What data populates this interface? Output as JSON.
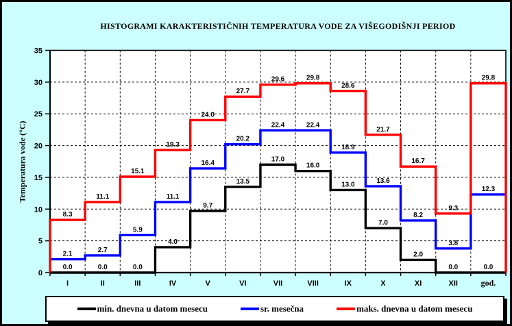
{
  "chart_data": {
    "type": "line",
    "step": true,
    "title": "HISTOGRAMI KARAKTERISTIČNIH TEMPERATURA VODE ZA VIŠEGODIŠNJI PERIOD",
    "ylabel": "Temperatura vode (°C)",
    "xlabel": "",
    "ylim": [
      0,
      35
    ],
    "ytick_step": 5,
    "yticks": [
      0,
      5,
      10,
      15,
      20,
      25,
      30,
      35
    ],
    "grid": true,
    "legend_position": "bottom",
    "categories": [
      "I",
      "II",
      "III",
      "IV",
      "V",
      "VI",
      "VII",
      "VIII",
      "IX",
      "X",
      "XI",
      "XII",
      "god."
    ],
    "series": [
      {
        "name": "min. dnevna u datom mesecu",
        "color": "#000000",
        "values": [
          0.0,
          0.0,
          0.0,
          4.0,
          9.7,
          13.5,
          17.0,
          16.0,
          13.0,
          7.0,
          2.0,
          0.0,
          0.0
        ]
      },
      {
        "name": "sr. mesečna",
        "color": "#0000FF",
        "values": [
          2.1,
          2.7,
          5.9,
          11.1,
          16.4,
          20.2,
          22.4,
          22.4,
          18.9,
          13.6,
          8.2,
          3.8,
          12.3
        ]
      },
      {
        "name": "maks. dnevna u datom mesecu",
        "color": "#FF0000",
        "values": [
          8.3,
          11.1,
          15.1,
          19.3,
          24.0,
          27.7,
          29.6,
          29.8,
          28.6,
          21.7,
          16.7,
          9.3,
          29.8
        ],
        "drop_to_zero_ends": true
      }
    ],
    "colors": {
      "background": "#CCFFFF",
      "plot_background": "#FFFFFF",
      "gridline": "#000000"
    }
  }
}
